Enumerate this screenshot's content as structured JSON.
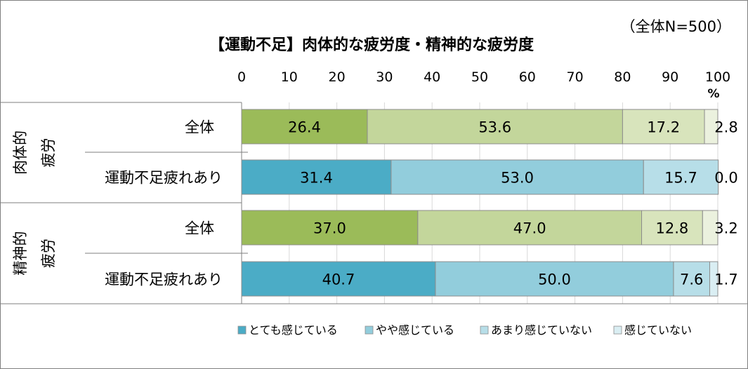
{
  "chart_data": {
    "type": "bar",
    "orientation": "horizontal",
    "stacked": true,
    "title": "【運動不足】肉体的な疲労度・精神的な疲労度",
    "subtitle": "（全体N=500）",
    "xlabel": "",
    "x_unit": "%",
    "xlim": [
      0,
      100
    ],
    "x_ticks": [
      "0",
      "10",
      "20",
      "30",
      "40",
      "50",
      "60",
      "70",
      "80",
      "90",
      "100"
    ],
    "grid": true,
    "legend_position": "bottom",
    "groups": [
      {
        "label": "肉体的\n疲労",
        "rows": [
          {
            "label": "全体",
            "palette": "green",
            "values": [
              26.4,
              53.6,
              17.2,
              2.8
            ],
            "value_labels": [
              "26.4",
              "53.6",
              "17.2",
              "2.8"
            ]
          },
          {
            "label": "運動不足疲れあり",
            "palette": "blue",
            "values": [
              31.4,
              53.0,
              15.7,
              0.0
            ],
            "value_labels": [
              "31.4",
              "53.0",
              "15.7",
              "0.0"
            ]
          }
        ]
      },
      {
        "label": "精神的\n疲労",
        "rows": [
          {
            "label": "全体",
            "palette": "green",
            "values": [
              37.0,
              47.0,
              12.8,
              3.2
            ],
            "value_labels": [
              "37.0",
              "47.0",
              "12.8",
              "3.2"
            ]
          },
          {
            "label": "運動不足疲れあり",
            "palette": "blue",
            "values": [
              40.7,
              50.0,
              7.6,
              1.7
            ],
            "value_labels": [
              "40.7",
              "50.0",
              "7.6",
              "1.7"
            ]
          }
        ]
      }
    ],
    "series": [
      {
        "name": "とても感じている"
      },
      {
        "name": "やや感じている"
      },
      {
        "name": "あまり感じていない"
      },
      {
        "name": "感じていない"
      }
    ],
    "colors": {
      "green": [
        "#9bbb59",
        "#c3d69b",
        "#d8e4bc",
        "#ebf1de"
      ],
      "blue": [
        "#4bacc6",
        "#92cddc",
        "#b7dee8",
        "#daeef3"
      ],
      "legend": [
        "#4bacc6",
        "#92cddc",
        "#b7dee8",
        "#daeef3"
      ],
      "grid": "#d9d9d9",
      "border": "#7f7f7f",
      "segment_edge": "#8c8c8c"
    }
  }
}
